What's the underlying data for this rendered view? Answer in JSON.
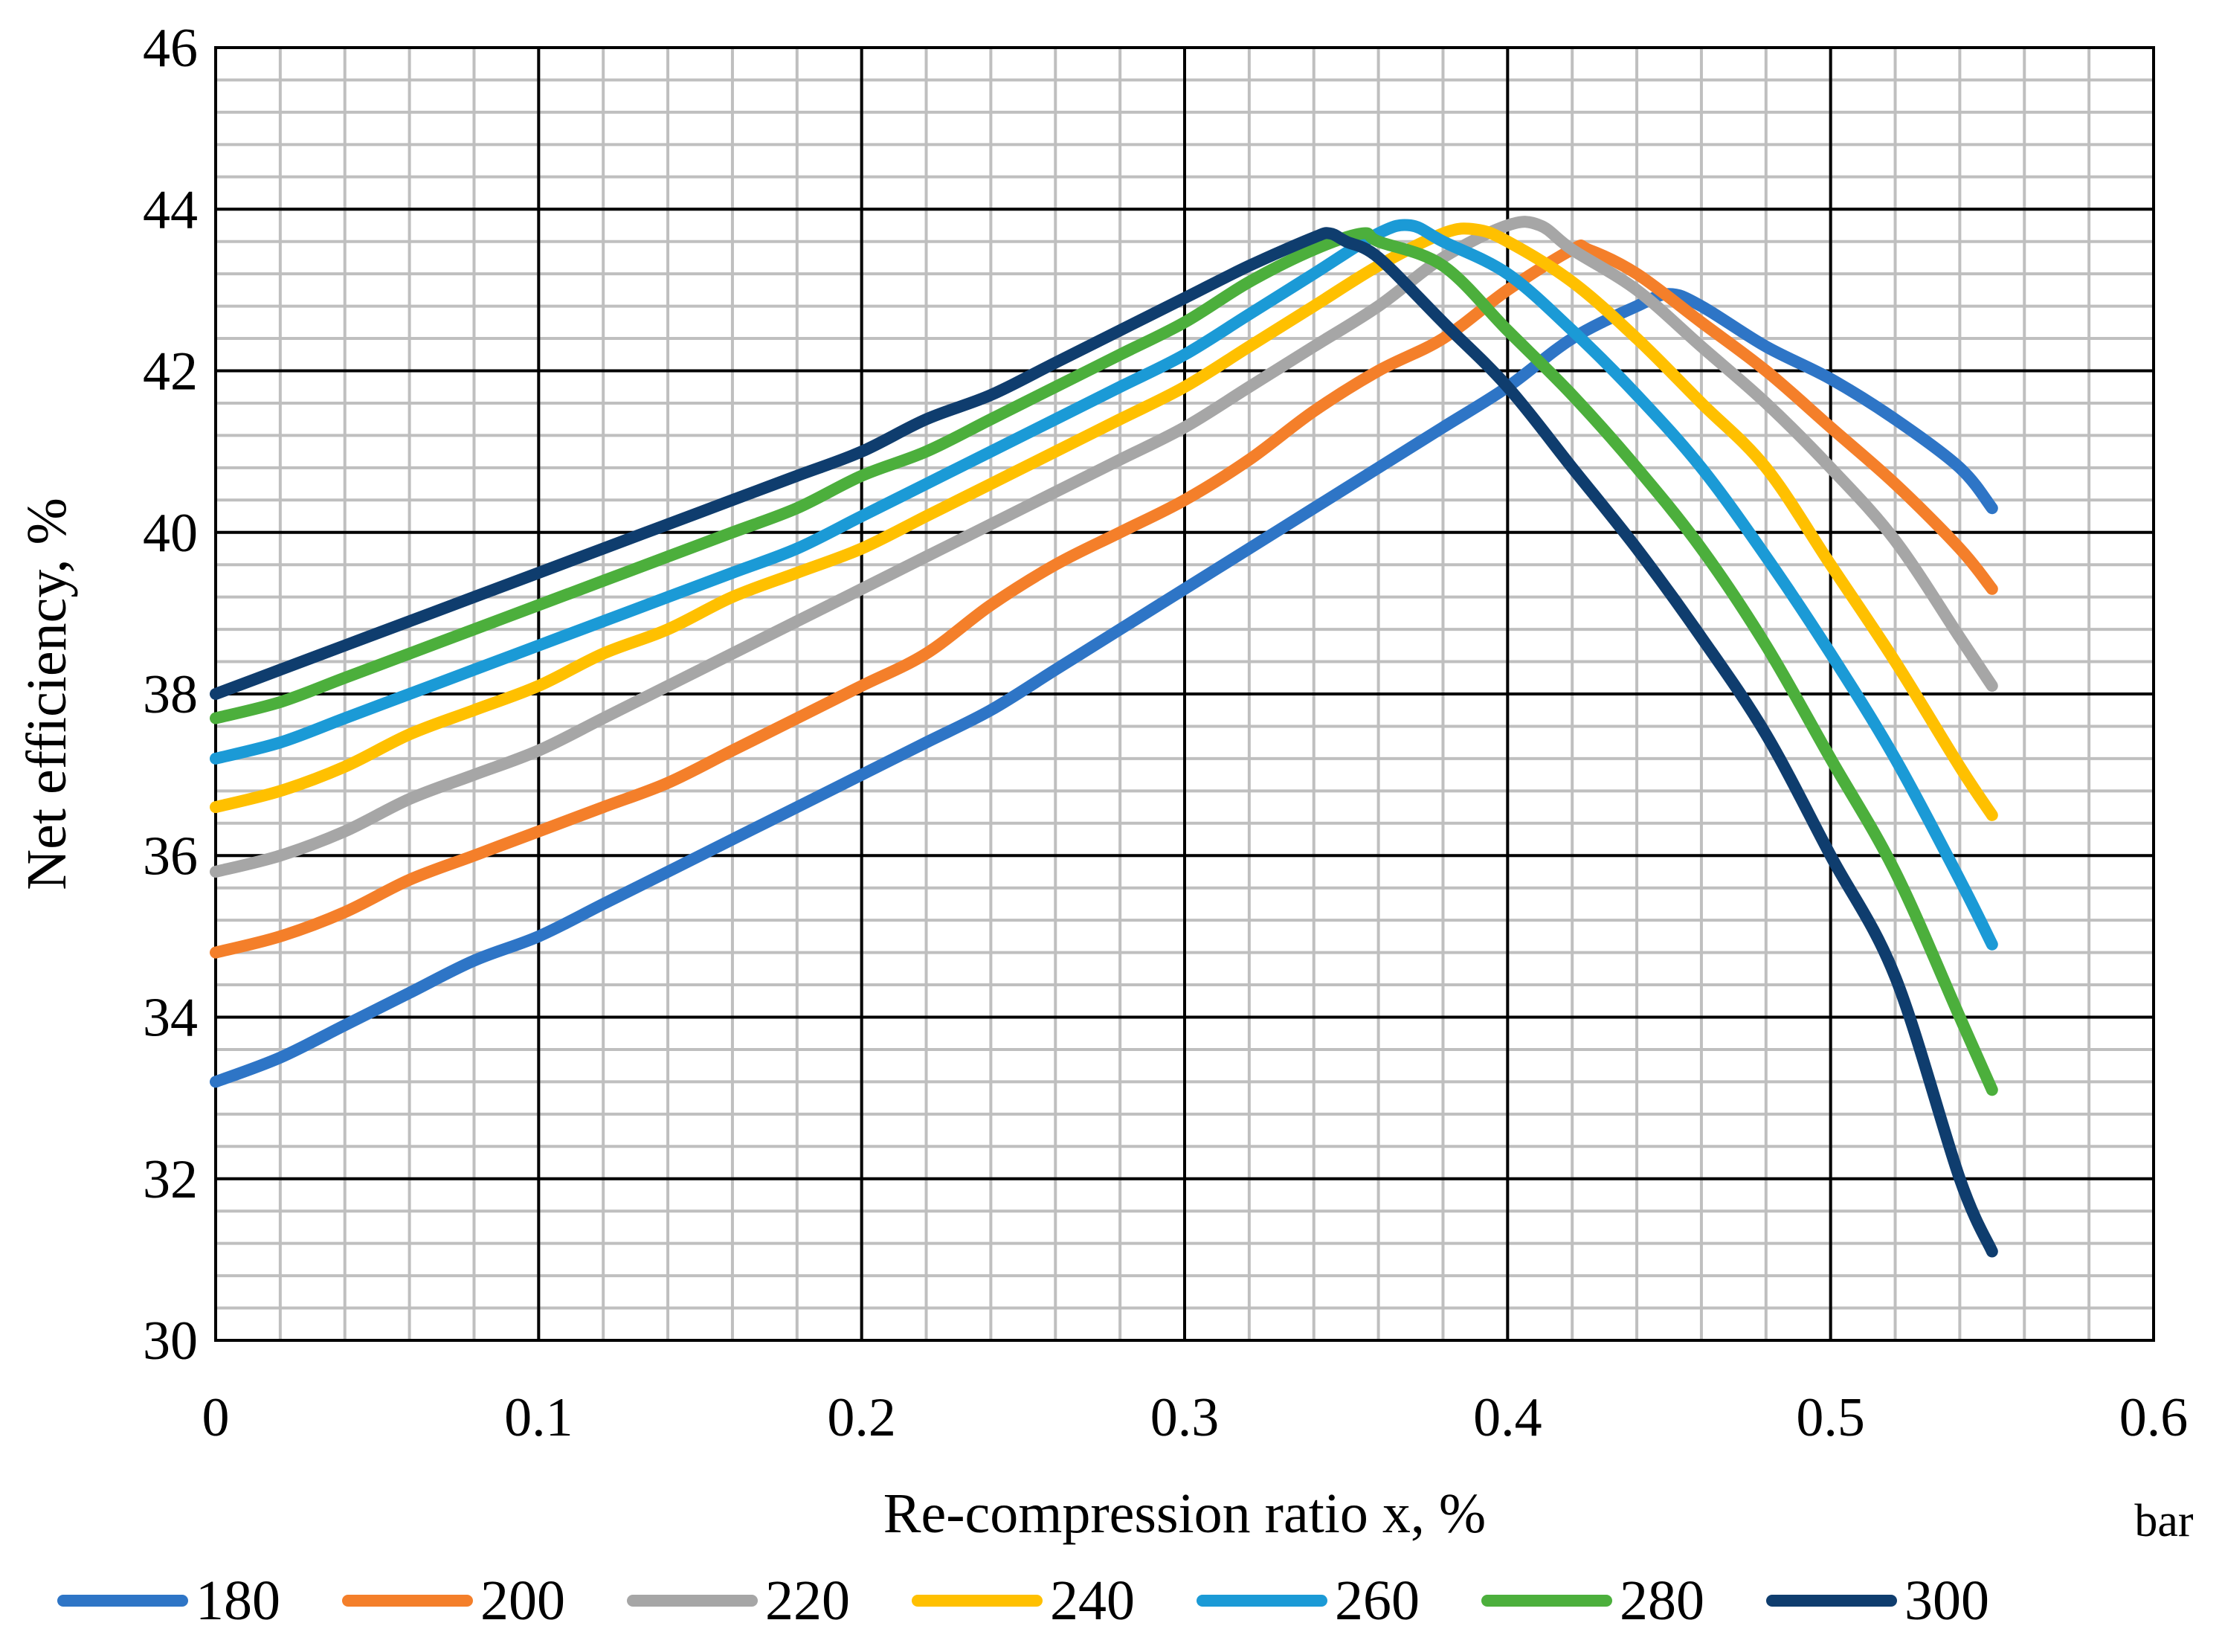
{
  "chart_data": {
    "type": "line",
    "title": "",
    "xlabel": "Re-compression ratio x, %",
    "ylabel": "Net efficiency, %",
    "unit_note": "bar",
    "xlim": [
      0,
      0.6
    ],
    "ylim": [
      30,
      46
    ],
    "x_major_step": 0.1,
    "y_major_step": 2,
    "x_minor_step": 0.02,
    "y_minor_step": 0.4,
    "grid": true,
    "x_tick_labels": [
      "0",
      "0.1",
      "0.2",
      "0.3",
      "0.4",
      "0.5",
      "0.6"
    ],
    "y_tick_labels": [
      "30",
      "32",
      "34",
      "36",
      "38",
      "40",
      "42",
      "44",
      "46"
    ],
    "legend_position": "bottom",
    "x": [
      0,
      0.02,
      0.04,
      0.06,
      0.08,
      0.1,
      0.12,
      0.14,
      0.16,
      0.18,
      0.2,
      0.22,
      0.24,
      0.26,
      0.28,
      0.3,
      0.32,
      0.34,
      0.36,
      0.38,
      0.4,
      0.42,
      0.44,
      0.46,
      0.48,
      0.5,
      0.52,
      0.54,
      0.55
    ],
    "series": [
      {
        "name": "180",
        "color": "#2E75C6",
        "x": [
          0,
          0.02,
          0.04,
          0.06,
          0.08,
          0.1,
          0.12,
          0.14,
          0.16,
          0.18,
          0.2,
          0.22,
          0.24,
          0.26,
          0.28,
          0.3,
          0.32,
          0.34,
          0.36,
          0.38,
          0.4,
          0.42,
          0.44,
          0.45,
          0.46,
          0.48,
          0.5,
          0.52,
          0.54,
          0.55
        ],
        "values": [
          33.2,
          33.5,
          33.9,
          34.3,
          34.7,
          35.0,
          35.4,
          35.8,
          36.2,
          36.6,
          37.0,
          37.4,
          37.8,
          38.3,
          38.8,
          39.3,
          39.8,
          40.3,
          40.8,
          41.3,
          41.8,
          42.4,
          42.8,
          42.95,
          42.8,
          42.3,
          41.9,
          41.4,
          40.8,
          40.3
        ]
      },
      {
        "name": "200",
        "color": "#F47F2A",
        "x": [
          0,
          0.02,
          0.04,
          0.06,
          0.08,
          0.1,
          0.12,
          0.14,
          0.16,
          0.18,
          0.2,
          0.22,
          0.24,
          0.26,
          0.28,
          0.3,
          0.32,
          0.34,
          0.36,
          0.38,
          0.4,
          0.42,
          0.425,
          0.44,
          0.46,
          0.48,
          0.5,
          0.52,
          0.54,
          0.55
        ],
        "values": [
          34.8,
          35.0,
          35.3,
          35.7,
          36.0,
          36.3,
          36.6,
          36.9,
          37.3,
          37.7,
          38.1,
          38.5,
          39.1,
          39.6,
          40.0,
          40.4,
          40.9,
          41.5,
          42.0,
          42.4,
          43.0,
          43.5,
          43.5,
          43.2,
          42.6,
          42.0,
          41.3,
          40.6,
          39.8,
          39.3
        ]
      },
      {
        "name": "220",
        "color": "#A6A6A6",
        "x": [
          0,
          0.02,
          0.04,
          0.06,
          0.08,
          0.1,
          0.12,
          0.14,
          0.16,
          0.18,
          0.2,
          0.22,
          0.24,
          0.26,
          0.28,
          0.3,
          0.32,
          0.34,
          0.36,
          0.38,
          0.4,
          0.41,
          0.42,
          0.44,
          0.46,
          0.48,
          0.5,
          0.52,
          0.54,
          0.55
        ],
        "values": [
          35.8,
          36.0,
          36.3,
          36.7,
          37.0,
          37.3,
          37.7,
          38.1,
          38.5,
          38.9,
          39.3,
          39.7,
          40.1,
          40.5,
          40.9,
          41.3,
          41.8,
          42.3,
          42.8,
          43.4,
          43.8,
          43.8,
          43.5,
          43.0,
          42.3,
          41.6,
          40.8,
          39.9,
          38.7,
          38.1
        ]
      },
      {
        "name": "240",
        "color": "#FFC000",
        "x": [
          0,
          0.02,
          0.04,
          0.06,
          0.08,
          0.1,
          0.12,
          0.14,
          0.16,
          0.18,
          0.2,
          0.22,
          0.24,
          0.26,
          0.28,
          0.3,
          0.32,
          0.34,
          0.36,
          0.38,
          0.39,
          0.4,
          0.42,
          0.44,
          0.46,
          0.48,
          0.5,
          0.52,
          0.54,
          0.55
        ],
        "values": [
          36.6,
          36.8,
          37.1,
          37.5,
          37.8,
          38.1,
          38.5,
          38.8,
          39.2,
          39.5,
          39.8,
          40.2,
          40.6,
          41.0,
          41.4,
          41.8,
          42.3,
          42.8,
          43.3,
          43.7,
          43.75,
          43.6,
          43.1,
          42.4,
          41.6,
          40.8,
          39.6,
          38.4,
          37.1,
          36.5
        ]
      },
      {
        "name": "260",
        "color": "#1B9AD6",
        "x": [
          0,
          0.02,
          0.04,
          0.06,
          0.08,
          0.1,
          0.12,
          0.14,
          0.16,
          0.18,
          0.2,
          0.22,
          0.24,
          0.26,
          0.28,
          0.3,
          0.32,
          0.34,
          0.36,
          0.37,
          0.38,
          0.4,
          0.42,
          0.44,
          0.46,
          0.48,
          0.5,
          0.52,
          0.54,
          0.55
        ],
        "values": [
          37.2,
          37.4,
          37.7,
          38.0,
          38.3,
          38.6,
          38.9,
          39.2,
          39.5,
          39.8,
          40.2,
          40.6,
          41.0,
          41.4,
          41.8,
          42.2,
          42.7,
          43.2,
          43.7,
          43.8,
          43.6,
          43.2,
          42.5,
          41.7,
          40.8,
          39.7,
          38.5,
          37.2,
          35.7,
          34.9
        ]
      },
      {
        "name": "280",
        "color": "#4CAF3C",
        "x": [
          0,
          0.02,
          0.04,
          0.06,
          0.08,
          0.1,
          0.12,
          0.14,
          0.16,
          0.18,
          0.2,
          0.22,
          0.24,
          0.26,
          0.28,
          0.3,
          0.32,
          0.34,
          0.355,
          0.36,
          0.38,
          0.4,
          0.42,
          0.44,
          0.46,
          0.48,
          0.5,
          0.52,
          0.54,
          0.55
        ],
        "values": [
          37.7,
          37.9,
          38.2,
          38.5,
          38.8,
          39.1,
          39.4,
          39.7,
          40.0,
          40.3,
          40.7,
          41.0,
          41.4,
          41.8,
          42.2,
          42.6,
          43.1,
          43.5,
          43.7,
          43.6,
          43.3,
          42.5,
          41.7,
          40.8,
          39.8,
          38.6,
          37.2,
          35.8,
          34.0,
          33.1
        ]
      },
      {
        "name": "300",
        "color": "#0F3D6E",
        "x": [
          0,
          0.02,
          0.04,
          0.06,
          0.08,
          0.1,
          0.12,
          0.14,
          0.16,
          0.18,
          0.2,
          0.22,
          0.24,
          0.26,
          0.28,
          0.3,
          0.32,
          0.34,
          0.345,
          0.35,
          0.36,
          0.38,
          0.4,
          0.42,
          0.44,
          0.46,
          0.48,
          0.5,
          0.52,
          0.54,
          0.55
        ],
        "values": [
          38.0,
          38.3,
          38.6,
          38.9,
          39.2,
          39.5,
          39.8,
          40.1,
          40.4,
          40.7,
          41.0,
          41.4,
          41.7,
          42.1,
          42.5,
          42.9,
          43.3,
          43.65,
          43.7,
          43.6,
          43.4,
          42.6,
          41.8,
          40.8,
          39.8,
          38.7,
          37.5,
          36.0,
          34.5,
          32.0,
          31.1
        ]
      }
    ]
  }
}
